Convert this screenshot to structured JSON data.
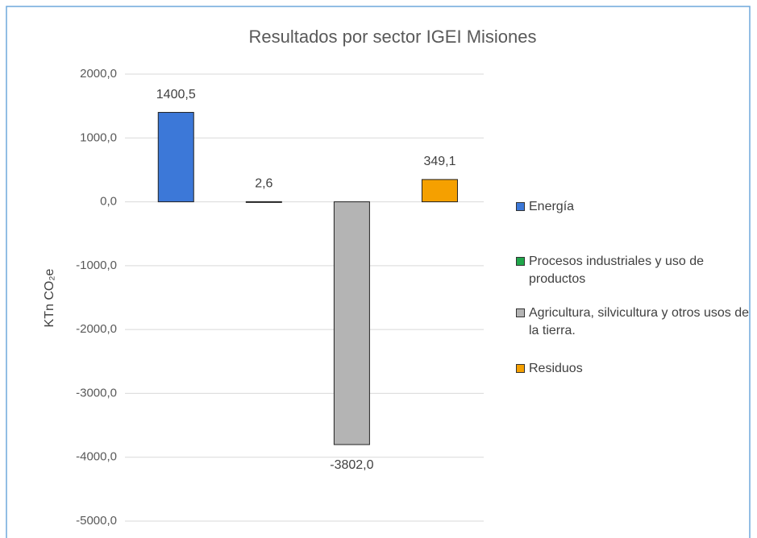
{
  "chart_data": {
    "type": "bar",
    "title": "Resultados por sector IGEI Misiones",
    "y_label": "KTn CO₂e",
    "series": [
      {
        "name": "Energía",
        "color": "#3c78d8",
        "values": [
          1400.5
        ],
        "value_labels": [
          "1400,5"
        ]
      },
      {
        "name": "Procesos industriales y uso de productos",
        "color": "#1fa64a",
        "values": [
          2.6
        ],
        "value_labels": [
          "2,6"
        ]
      },
      {
        "name": "Agricultura, silvicultura y otros usos de la tierra.",
        "color": "#b4b4b4",
        "values": [
          -3802.0
        ],
        "value_labels": [
          "-3802,0"
        ]
      },
      {
        "name": "Residuos",
        "color": "#f5a000",
        "values": [
          349.1
        ],
        "value_labels": [
          "349,1"
        ]
      }
    ],
    "ylim": [
      -5000,
      2000
    ],
    "yticks": [
      {
        "value": 2000,
        "label": "2000,0"
      },
      {
        "value": 1000,
        "label": "1000,0"
      },
      {
        "value": 0,
        "label": "0,0"
      },
      {
        "value": -1000,
        "label": "-1000,0"
      },
      {
        "value": -2000,
        "label": "-2000,0"
      },
      {
        "value": -3000,
        "label": "-3000,0"
      },
      {
        "value": -4000,
        "label": "-4000,0"
      },
      {
        "value": -5000,
        "label": "-5000,0"
      }
    ],
    "grid": true,
    "legend": "right"
  }
}
